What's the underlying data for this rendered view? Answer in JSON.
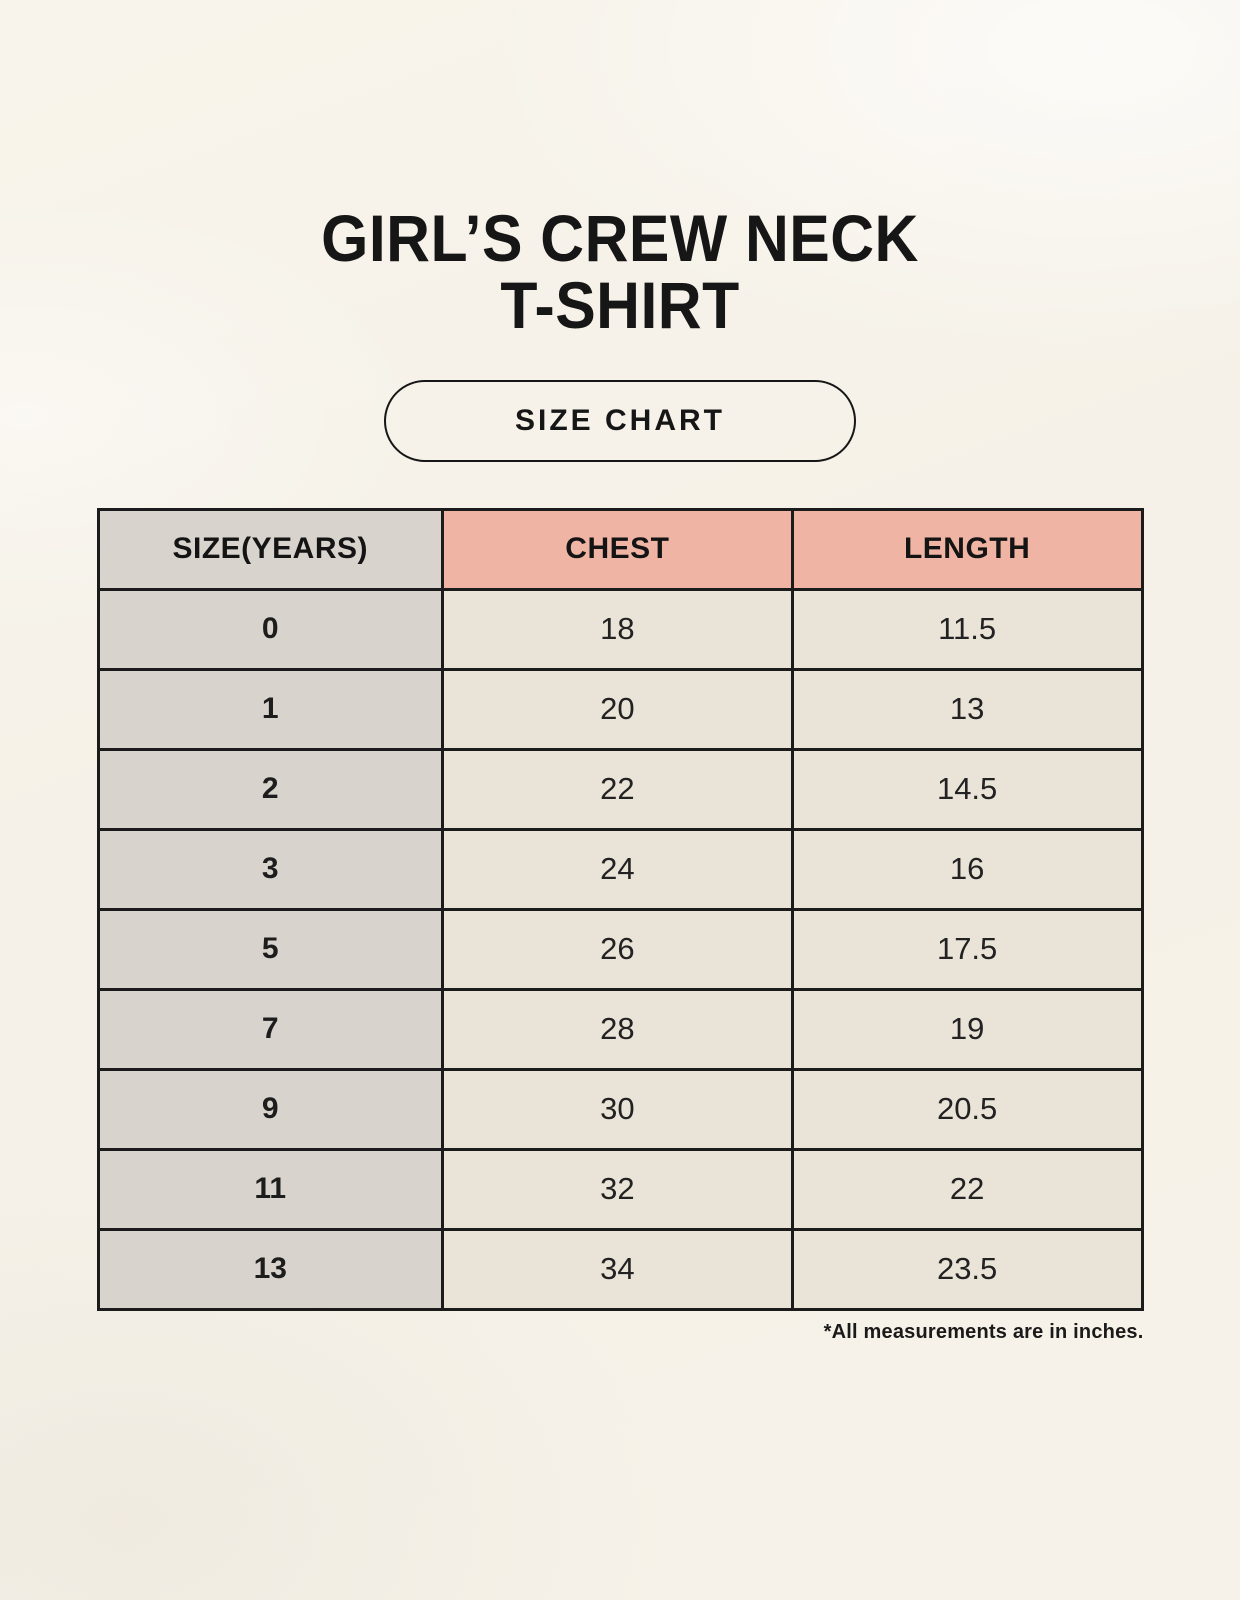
{
  "header": {
    "title_line1": "GIRL’S CREW NECK",
    "title_line2": "T-SHIRT",
    "badge_label": "SIZE CHART"
  },
  "chart_data": {
    "type": "table",
    "title": "GIRL’S CREW NECK T-SHIRT",
    "subtitle": "SIZE CHART",
    "columns": [
      "SIZE(YEARS)",
      "CHEST",
      "LENGTH"
    ],
    "rows": [
      [
        "0",
        "18",
        "11.5"
      ],
      [
        "1",
        "20",
        "13"
      ],
      [
        "2",
        "22",
        "14.5"
      ],
      [
        "3",
        "24",
        "16"
      ],
      [
        "5",
        "26",
        "17.5"
      ],
      [
        "7",
        "28",
        "19"
      ],
      [
        "9",
        "30",
        "20.5"
      ],
      [
        "11",
        "32",
        "22"
      ],
      [
        "13",
        "34",
        "23.5"
      ]
    ],
    "units_note": "*All measurements are in inches.",
    "legend_position": "none",
    "grid": true
  },
  "colors": {
    "background": "#f5f1e8",
    "border": "#1b1b1b",
    "text": "#1d1d1d",
    "header_size_bg": "#d9d3ce",
    "header_measure_bg": "#f0b4a4",
    "row_size_bg": "#d9d3ce",
    "row_cell_bg": "#eae3d8"
  }
}
